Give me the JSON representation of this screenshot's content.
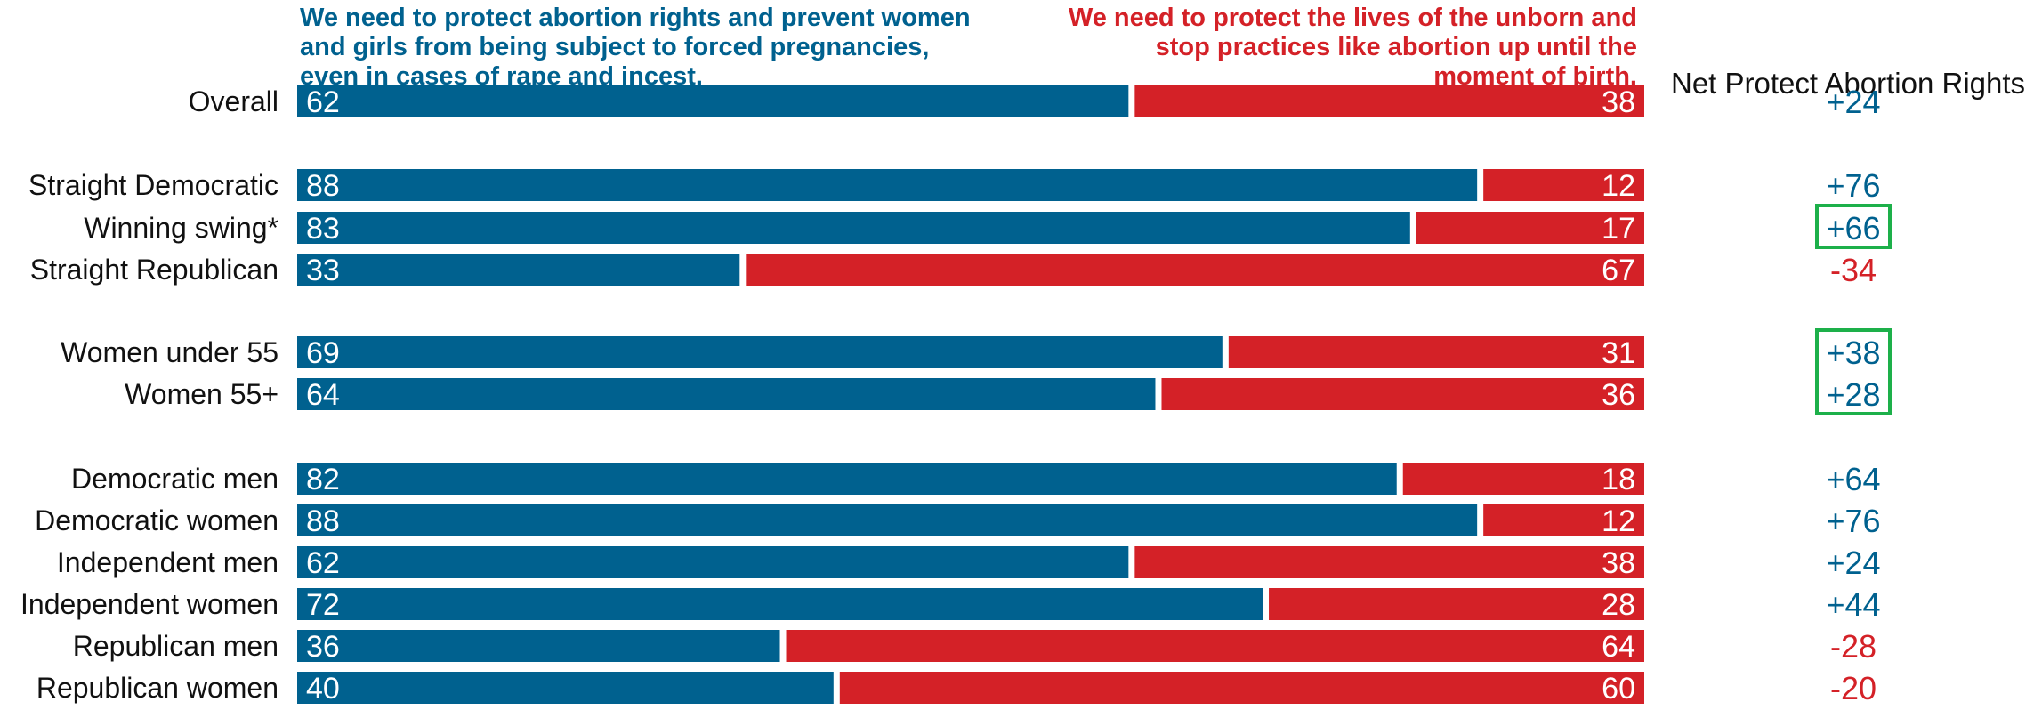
{
  "header": {
    "left": "We need to protect abortion rights and prevent women and girls from being subject to forced pregnancies, even in cases of rape and incest.",
    "right": "We need to protect the lives of the unborn and stop practices like abortion up until the moment of birth.",
    "net_title": "Net Protect Abortion Rights"
  },
  "colors": {
    "protect": "#00618f",
    "unborn": "#d42127",
    "highlight": "#1db04a",
    "label": "#111111"
  },
  "chart_data": {
    "type": "bar",
    "stacked": true,
    "orientation": "horizontal",
    "xlim": [
      0,
      100
    ],
    "categories": [
      "Overall",
      "Straight Democratic",
      "Winning swing*",
      "Straight Republican",
      "Women under 55",
      "Women 55+",
      "Democratic men",
      "Democratic women",
      "Independent men",
      "Independent women",
      "Republican men",
      "Republican women"
    ],
    "groups": [
      [
        0
      ],
      [
        1,
        2,
        3
      ],
      [
        4,
        5
      ],
      [
        6,
        7,
        8,
        9,
        10,
        11
      ]
    ],
    "series": [
      {
        "key": "protect",
        "values": [
          62,
          88,
          83,
          33,
          69,
          64,
          82,
          88,
          62,
          72,
          36,
          40
        ]
      },
      {
        "key": "unborn",
        "values": [
          38,
          12,
          17,
          67,
          31,
          36,
          18,
          12,
          38,
          28,
          64,
          60
        ]
      }
    ],
    "net": [
      "+24",
      "+76",
      "+66",
      "-34",
      "+38",
      "+28",
      "+64",
      "+76",
      "+24",
      "+44",
      "-28",
      "-20"
    ],
    "highlighted_net": [
      [
        2
      ],
      [
        4,
        5
      ]
    ]
  }
}
